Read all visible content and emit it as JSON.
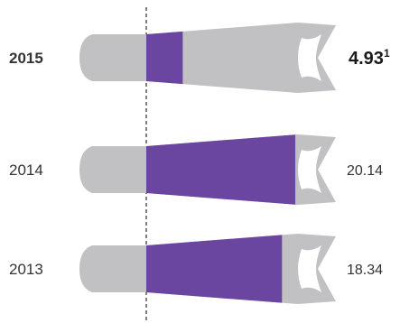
{
  "colors": {
    "shell": "#c1c1c4",
    "fill": "#6b46a0",
    "cutout": "#ffffff",
    "baseline": "#000000"
  },
  "chart_data": {
    "type": "bar",
    "categories": [
      "2015",
      "2014",
      "2013"
    ],
    "values": [
      4.93,
      20.14,
      18.34
    ],
    "value_labels": [
      "4.93",
      "20.14",
      "18.34"
    ],
    "footnote_marker": "1",
    "highlight": "2015",
    "scale_max": 20.5,
    "title": "",
    "xlabel": "",
    "ylabel": "",
    "grid": false,
    "baseline": "dashed vertical line at zero"
  }
}
